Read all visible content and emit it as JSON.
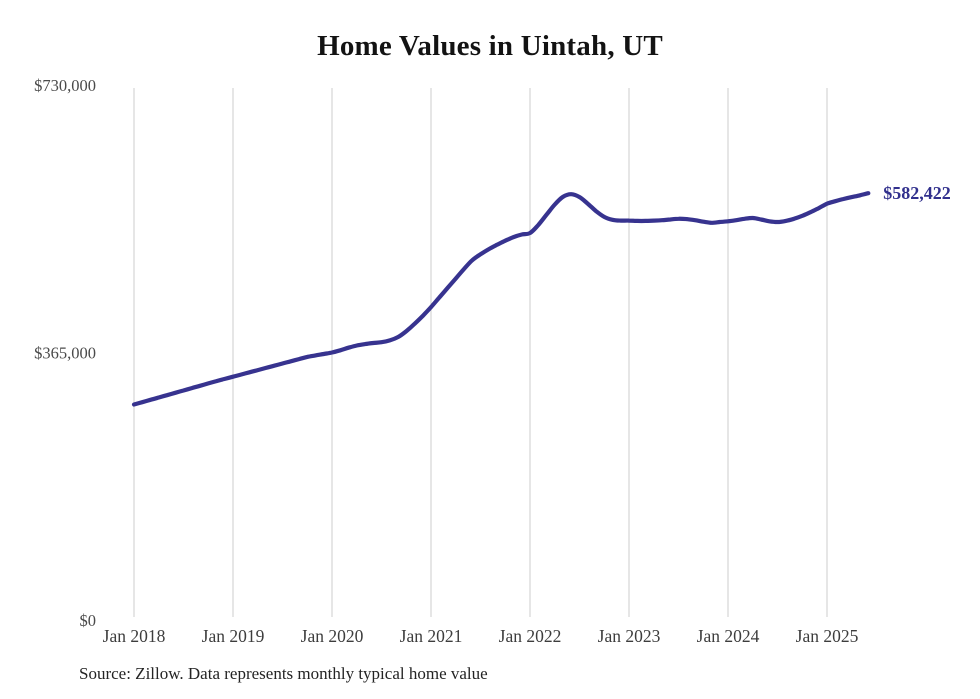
{
  "title": "Home Values in Uintah, UT",
  "source_note": "Source: Zillow. Data represents monthly typical home value",
  "end_label": "$582,422",
  "colors": {
    "line": "#37338f",
    "grid": "#cccccc",
    "y_tick_text": "#4a4a4a",
    "x_tick_text": "#3d3d3d",
    "title_text": "#131313",
    "end_label_text": "#31308d",
    "source_text": "#242424"
  },
  "chart_data": {
    "type": "line",
    "title": "Home Values in Uintah, UT",
    "ylabel": "",
    "xlabel": "",
    "ylim": [
      0,
      730000
    ],
    "grid": "vertical-only",
    "legend": "none",
    "x_start_month": "2018-01",
    "x_end_month": "2025-06",
    "x_ticks": [
      {
        "label": "Jan 2018",
        "month_index": 0
      },
      {
        "label": "Jan 2019",
        "month_index": 12
      },
      {
        "label": "Jan 2020",
        "month_index": 24
      },
      {
        "label": "Jan 2021",
        "month_index": 36
      },
      {
        "label": "Jan 2022",
        "month_index": 48
      },
      {
        "label": "Jan 2023",
        "month_index": 60
      },
      {
        "label": "Jan 2024",
        "month_index": 72
      },
      {
        "label": "Jan 2025",
        "month_index": 84
      }
    ],
    "y_ticks": [
      {
        "label": "$0",
        "value": 0
      },
      {
        "label": "$365,000",
        "value": 365000
      },
      {
        "label": "$730,000",
        "value": 730000
      }
    ],
    "series": [
      {
        "name": "Typical home value (monthly)",
        "values": [
          294000,
          297200,
          300400,
          303600,
          306800,
          310000,
          313200,
          316400,
          319600,
          322800,
          326000,
          329000,
          332000,
          335000,
          338000,
          341000,
          344000,
          347000,
          350000,
          353000,
          356000,
          359000,
          361000,
          363000,
          365000,
          368000,
          371500,
          374500,
          376500,
          378000,
          379000,
          381500,
          386000,
          394000,
          404000,
          415000,
          427000,
          440000,
          453000,
          466000,
          479000,
          491000,
          499000,
          506000,
          512000,
          517500,
          522500,
          526000,
          528000,
          539000,
          553000,
          567000,
          577500,
          581000,
          577000,
          568000,
          558000,
          550000,
          546000,
          545000,
          545000,
          544500,
          544500,
          545000,
          545500,
          546500,
          547500,
          547000,
          545500,
          543500,
          542000,
          543000,
          544000,
          545500,
          547500,
          548500,
          546500,
          544000,
          543000,
          544500,
          547500,
          551500,
          556500,
          562000,
          568000,
          571500,
          574500,
          577000,
          579500,
          582422
        ]
      }
    ],
    "end_value": 582422
  }
}
